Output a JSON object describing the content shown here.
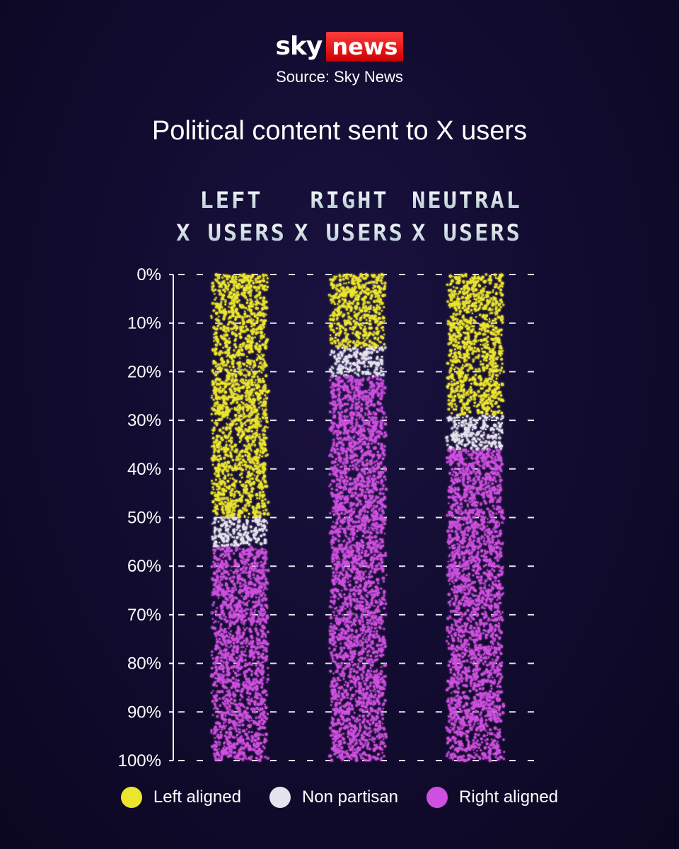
{
  "brand": {
    "sky": "sky",
    "news": "news"
  },
  "source": "Source: Sky News",
  "chart_data": {
    "type": "bar",
    "title": "Political content sent to X users",
    "orientation": "stacked-vertical-100",
    "categories": [
      {
        "line1": "LEFT",
        "line2": "X USERS"
      },
      {
        "line1": "RIGHT",
        "line2": "X USERS"
      },
      {
        "line1": "NEUTRAL",
        "line2": "X USERS"
      }
    ],
    "series": [
      {
        "name": "Left aligned",
        "color": "#ece52e",
        "values": [
          50,
          15,
          29
        ]
      },
      {
        "name": "Non partisan",
        "color": "#e6e2ee",
        "values": [
          6,
          6,
          7
        ]
      },
      {
        "name": "Right aligned",
        "color": "#cf4fe0",
        "values": [
          44,
          79,
          64
        ]
      }
    ],
    "y_ticks": [
      "0%",
      "10%",
      "20%",
      "30%",
      "40%",
      "50%",
      "60%",
      "70%",
      "80%",
      "90%",
      "100%"
    ],
    "ylim": [
      0,
      100
    ],
    "y_direction": "down",
    "grid": true,
    "legend_position": "bottom"
  }
}
